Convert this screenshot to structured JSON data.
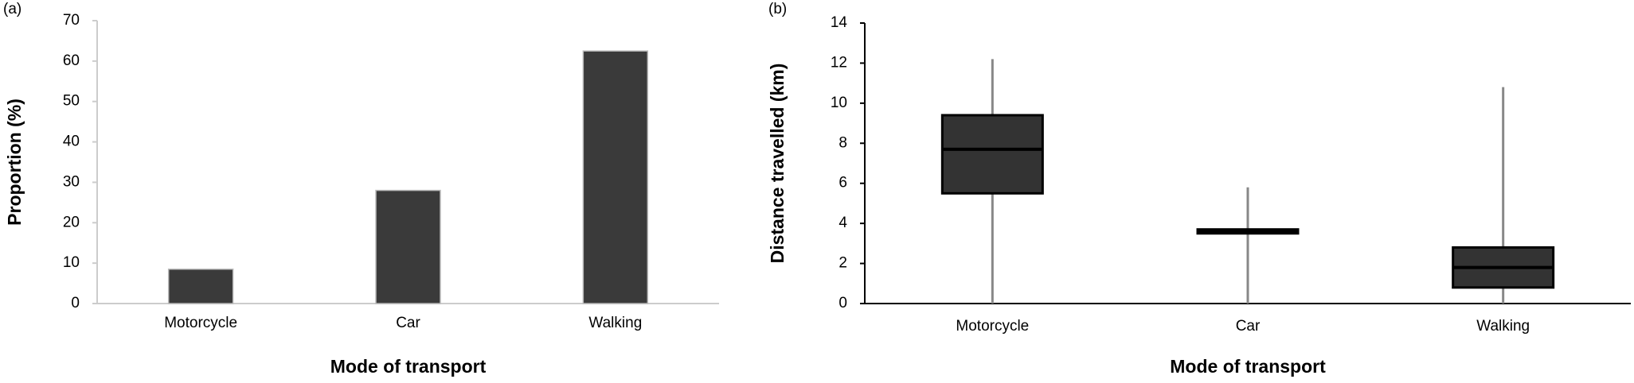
{
  "chart_data": [
    {
      "type": "bar",
      "panel_label": "(a)",
      "ylabel": "Proportion (%)",
      "xlabel": "Mode of transport",
      "categories": [
        "Motorcycle",
        "Car",
        "Walking"
      ],
      "values": [
        8.5,
        28,
        62.5
      ],
      "color": "#3a3a3a",
      "ylim": [
        0,
        70
      ],
      "yticks": [
        0,
        10,
        20,
        30,
        40,
        50,
        60,
        70
      ]
    },
    {
      "type": "box",
      "panel_label": "(b)",
      "ylabel": "Distance travelled (km)",
      "xlabel": "Mode of transport",
      "categories": [
        "Motorcycle",
        "Car",
        "Walking"
      ],
      "min": [
        0,
        0,
        0
      ],
      "q1": [
        5.5,
        3.5,
        0.8
      ],
      "median": [
        7.7,
        3.6,
        1.8
      ],
      "q3": [
        9.4,
        3.7,
        2.8
      ],
      "max": [
        12.2,
        5.8,
        10.8
      ],
      "color": "#333333",
      "ylim": [
        0,
        14
      ],
      "yticks": [
        0,
        2,
        4,
        6,
        8,
        10,
        12,
        14
      ]
    }
  ]
}
